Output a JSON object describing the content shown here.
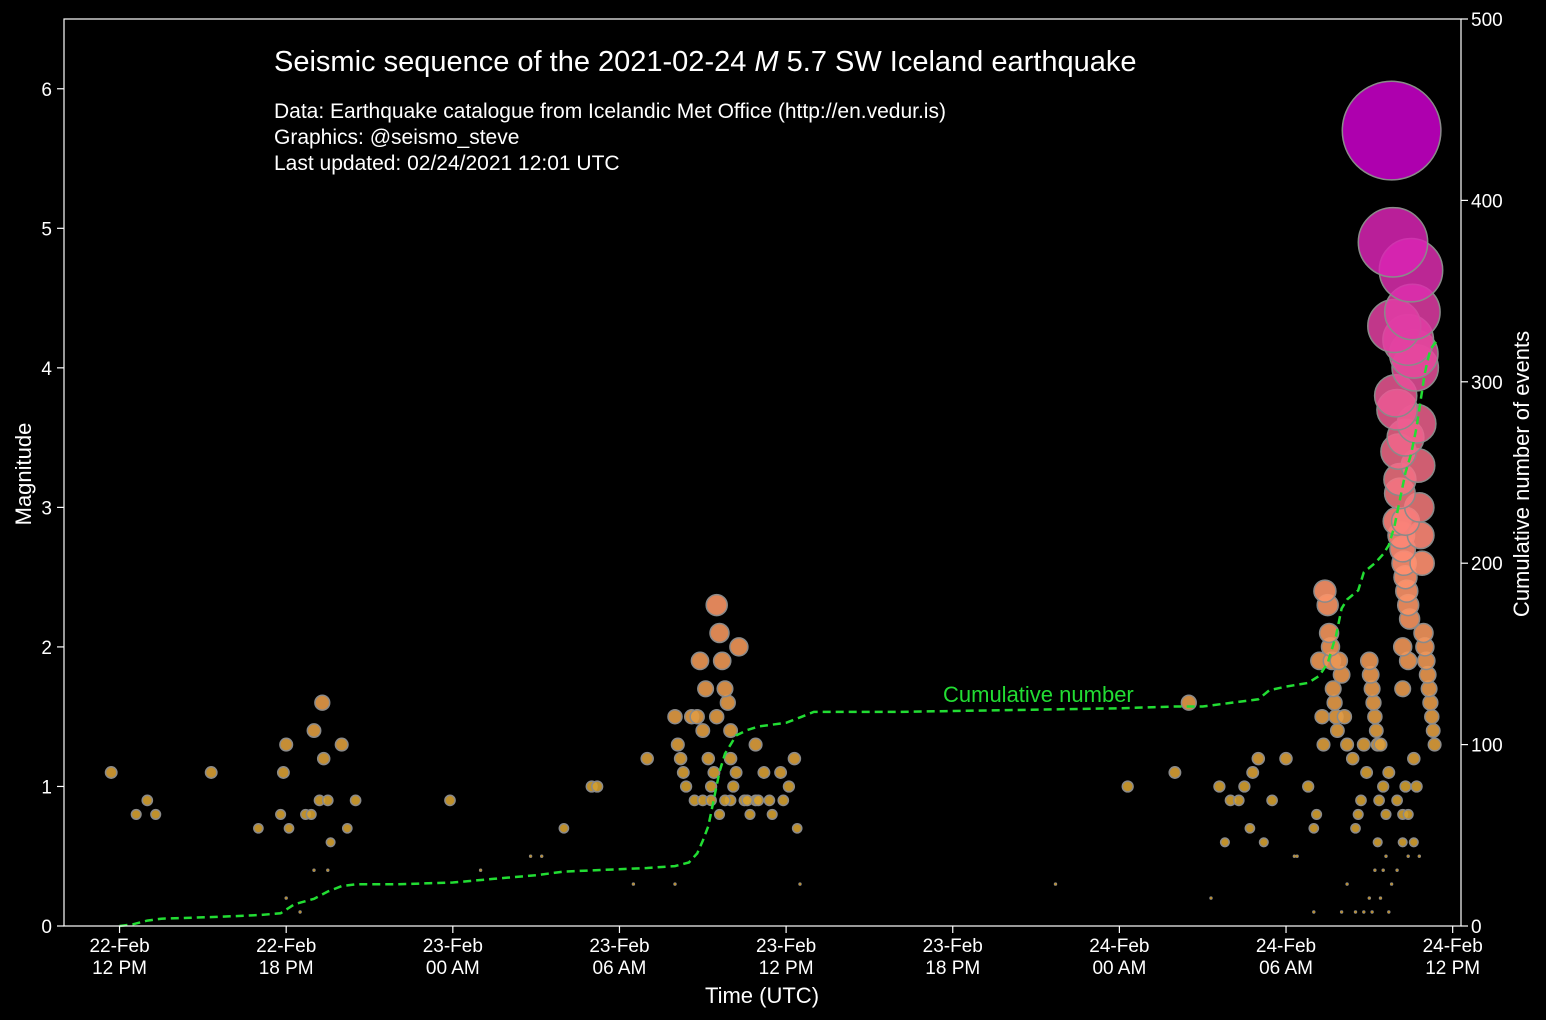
{
  "chart_data": {
    "type": "scatter",
    "title_prefix": "Seismic sequence of the 2021-02-24 ",
    "title_italic": "M",
    "title_suffix": " 5.7 SW Iceland earthquake",
    "info_lines": [
      "Data: Earthquake catalogue from Icelandic Met Office (http://en.vedur.is)",
      "Graphics: @seismo_steve",
      "Last updated:  02/24/2021 12:01 UTC"
    ],
    "xlabel": "Time (UTC)",
    "ylabel": "Magnitude",
    "y2label": "Cumulative number of events",
    "xlim_hours": [
      -2.0,
      48.3
    ],
    "ylim": [
      0,
      6.5
    ],
    "y2lim": [
      0,
      500
    ],
    "y_ticks": [
      0,
      1,
      2,
      3,
      4,
      5,
      6
    ],
    "y2_ticks": [
      0,
      100,
      200,
      300,
      400,
      500
    ],
    "x_ticks": [
      {
        "hours": 0,
        "line1": "22-Feb",
        "line2": "12 PM"
      },
      {
        "hours": 6,
        "line1": "22-Feb",
        "line2": "18 PM"
      },
      {
        "hours": 12,
        "line1": "23-Feb",
        "line2": "00 AM"
      },
      {
        "hours": 18,
        "line1": "23-Feb",
        "line2": "06 AM"
      },
      {
        "hours": 24,
        "line1": "23-Feb",
        "line2": "12 PM"
      },
      {
        "hours": 30,
        "line1": "23-Feb",
        "line2": "18 PM"
      },
      {
        "hours": 36,
        "line1": "24-Feb",
        "line2": "00 AM"
      },
      {
        "hours": 42,
        "line1": "24-Feb",
        "line2": "06 AM"
      },
      {
        "hours": 48,
        "line1": "24-Feb",
        "line2": "12 PM"
      }
    ],
    "cumulative_label": "Cumulative number",
    "colors": {
      "background": "#000000",
      "axes": "#ffffff",
      "cumulative": "#22dd33",
      "marker_edge": "#8a8a8a",
      "low_mag": "#d4a030",
      "mid_mag": "#ff9070",
      "high_mag": "#cc00cc"
    },
    "events": [
      [
        -0.3,
        1.1
      ],
      [
        0.6,
        0.8
      ],
      [
        1.0,
        0.9
      ],
      [
        1.3,
        0.8
      ],
      [
        3.3,
        1.1
      ],
      [
        5.0,
        0.7
      ],
      [
        5.8,
        0.8
      ],
      [
        5.9,
        1.1
      ],
      [
        6.0,
        1.3
      ],
      [
        6.1,
        0.7
      ],
      [
        6.7,
        0.8
      ],
      [
        6.9,
        0.8
      ],
      [
        7.0,
        1.4
      ],
      [
        7.2,
        0.9
      ],
      [
        7.3,
        1.6
      ],
      [
        7.35,
        1.2
      ],
      [
        7.5,
        0.9
      ],
      [
        7.6,
        0.6
      ],
      [
        8.0,
        1.3
      ],
      [
        8.2,
        0.7
      ],
      [
        8.5,
        0.9
      ],
      [
        6.0,
        0.2
      ],
      [
        6.5,
        0.1
      ],
      [
        7.0,
        0.4
      ],
      [
        7.5,
        0.4
      ],
      [
        11.9,
        0.9
      ],
      [
        13.0,
        0.4
      ],
      [
        14.8,
        0.5
      ],
      [
        15.2,
        0.5
      ],
      [
        16.0,
        0.7
      ],
      [
        17.0,
        1.0
      ],
      [
        17.2,
        1.0
      ],
      [
        18.5,
        0.3
      ],
      [
        19.0,
        1.2
      ],
      [
        20.0,
        1.5
      ],
      [
        20.1,
        1.3
      ],
      [
        20.2,
        1.2
      ],
      [
        20.3,
        1.1
      ],
      [
        20.4,
        1.0
      ],
      [
        20.6,
        1.5
      ],
      [
        20.7,
        0.9
      ],
      [
        20.8,
        1.5
      ],
      [
        20.9,
        1.9
      ],
      [
        21.0,
        1.4
      ],
      [
        21.1,
        1.7
      ],
      [
        21.2,
        1.2
      ],
      [
        21.3,
        1.0
      ],
      [
        21.4,
        1.1
      ],
      [
        21.5,
        2.3
      ],
      [
        21.6,
        2.1
      ],
      [
        21.7,
        1.9
      ],
      [
        21.8,
        1.7
      ],
      [
        21.9,
        1.6
      ],
      [
        22.0,
        1.4
      ],
      [
        22.1,
        1.0
      ],
      [
        22.2,
        1.1
      ],
      [
        22.3,
        2.0
      ],
      [
        22.5,
        0.9
      ],
      [
        22.7,
        0.8
      ],
      [
        22.9,
        1.3
      ],
      [
        23.2,
        1.1
      ],
      [
        23.5,
        0.8
      ],
      [
        23.8,
        1.1
      ],
      [
        23.9,
        0.9
      ],
      [
        24.1,
        1.0
      ],
      [
        24.3,
        1.2
      ],
      [
        24.4,
        0.7
      ],
      [
        20.0,
        0.3
      ],
      [
        22.0,
        0.9
      ],
      [
        21.0,
        0.9
      ],
      [
        21.6,
        0.8
      ],
      [
        22.9,
        0.9
      ],
      [
        23.4,
        0.9
      ],
      [
        24.5,
        0.3
      ],
      [
        22.6,
        0.9
      ],
      [
        21.3,
        0.9
      ],
      [
        23.0,
        0.9
      ],
      [
        21.8,
        0.9
      ],
      [
        22.0,
        1.2
      ],
      [
        21.5,
        1.5
      ],
      [
        36.3,
        1.0
      ],
      [
        38.0,
        1.1
      ],
      [
        38.5,
        1.6
      ],
      [
        39.6,
        1.0
      ],
      [
        39.8,
        0.6
      ],
      [
        40.0,
        0.9
      ],
      [
        40.3,
        0.9
      ],
      [
        40.5,
        1.0
      ],
      [
        40.7,
        0.7
      ],
      [
        40.8,
        1.1
      ],
      [
        41.0,
        1.2
      ],
      [
        41.2,
        0.6
      ],
      [
        41.5,
        0.9
      ],
      [
        42.0,
        1.2
      ],
      [
        42.3,
        0.5
      ],
      [
        42.8,
        1.0
      ],
      [
        43.0,
        0.7
      ],
      [
        43.1,
        0.8
      ],
      [
        43.2,
        1.9
      ],
      [
        43.3,
        1.5
      ],
      [
        43.35,
        1.3
      ],
      [
        43.4,
        2.4
      ],
      [
        43.5,
        2.3
      ],
      [
        43.55,
        2.1
      ],
      [
        43.6,
        2.0
      ],
      [
        43.65,
        1.9
      ],
      [
        43.7,
        1.7
      ],
      [
        43.75,
        1.6
      ],
      [
        43.8,
        1.5
      ],
      [
        43.85,
        1.4
      ],
      [
        43.9,
        1.9
      ],
      [
        44.0,
        1.8
      ],
      [
        44.1,
        1.5
      ],
      [
        44.2,
        1.3
      ],
      [
        44.4,
        1.2
      ],
      [
        44.5,
        0.7
      ],
      [
        44.6,
        0.8
      ],
      [
        44.7,
        0.9
      ],
      [
        44.8,
        1.3
      ],
      [
        44.9,
        1.1
      ],
      [
        45.0,
        1.9
      ],
      [
        45.05,
        1.8
      ],
      [
        45.1,
        1.7
      ],
      [
        45.15,
        1.6
      ],
      [
        45.2,
        1.5
      ],
      [
        45.25,
        1.4
      ],
      [
        45.3,
        1.3
      ],
      [
        45.35,
        0.9
      ],
      [
        45.4,
        1.3
      ],
      [
        45.5,
        1.0
      ],
      [
        45.6,
        0.8
      ],
      [
        45.7,
        1.1
      ],
      [
        45.8,
        5.7
      ],
      [
        45.85,
        4.9
      ],
      [
        45.9,
        4.3
      ],
      [
        45.95,
        3.8
      ],
      [
        46.0,
        3.7
      ],
      [
        46.05,
        3.4
      ],
      [
        46.1,
        3.1
      ],
      [
        46.15,
        2.8
      ],
      [
        46.2,
        2.7
      ],
      [
        46.25,
        2.6
      ],
      [
        46.3,
        2.5
      ],
      [
        46.35,
        2.4
      ],
      [
        46.4,
        2.3
      ],
      [
        46.45,
        2.2
      ],
      [
        46.5,
        4.7
      ],
      [
        46.55,
        4.4
      ],
      [
        46.6,
        4.1
      ],
      [
        46.65,
        4.0
      ],
      [
        46.7,
        3.6
      ],
      [
        46.75,
        3.3
      ],
      [
        46.8,
        3.0
      ],
      [
        46.85,
        2.8
      ],
      [
        46.9,
        2.6
      ],
      [
        46.95,
        2.1
      ],
      [
        47.0,
        2.0
      ],
      [
        47.05,
        1.9
      ],
      [
        47.1,
        1.8
      ],
      [
        47.15,
        1.7
      ],
      [
        47.2,
        1.6
      ],
      [
        47.25,
        1.5
      ],
      [
        47.3,
        1.4
      ],
      [
        47.35,
        1.3
      ],
      [
        46.0,
        2.9
      ],
      [
        46.3,
        3.5
      ],
      [
        46.4,
        4.2
      ],
      [
        46.1,
        3.2
      ],
      [
        46.3,
        2.9
      ],
      [
        46.2,
        2.0
      ],
      [
        46.2,
        1.7
      ],
      [
        46.4,
        1.9
      ],
      [
        46.6,
        1.2
      ],
      [
        46.3,
        1.0
      ],
      [
        46.7,
        1.0
      ],
      [
        46.0,
        0.9
      ],
      [
        46.2,
        0.8
      ],
      [
        46.4,
        0.8
      ],
      [
        46.8,
        0.5
      ],
      [
        45.6,
        0.5
      ],
      [
        45.5,
        0.4
      ],
      [
        45.8,
        0.3
      ],
      [
        46.0,
        0.4
      ],
      [
        46.2,
        0.6
      ],
      [
        46.4,
        0.5
      ],
      [
        46.6,
        0.6
      ],
      [
        45.3,
        0.6
      ],
      [
        45.2,
        0.4
      ],
      [
        45.0,
        0.2
      ],
      [
        45.4,
        0.2
      ],
      [
        45.7,
        0.1
      ],
      [
        44.8,
        0.1
      ],
      [
        44.2,
        0.3
      ],
      [
        42.4,
        0.5
      ],
      [
        33.7,
        0.3
      ],
      [
        39.3,
        0.2
      ],
      [
        43.0,
        0.1
      ],
      [
        44.0,
        0.1
      ],
      [
        44.5,
        0.1
      ],
      [
        45.1,
        0.1
      ]
    ],
    "cumulative": [
      [
        0.0,
        0
      ],
      [
        0.5,
        1
      ],
      [
        1.0,
        3
      ],
      [
        1.5,
        4
      ],
      [
        3.5,
        5
      ],
      [
        5.0,
        6
      ],
      [
        5.8,
        7
      ],
      [
        6.3,
        12
      ],
      [
        7.0,
        15
      ],
      [
        7.5,
        19
      ],
      [
        8.0,
        22
      ],
      [
        8.5,
        23
      ],
      [
        10.0,
        23
      ],
      [
        12.0,
        24
      ],
      [
        13.5,
        26
      ],
      [
        15.0,
        28
      ],
      [
        16.0,
        30
      ],
      [
        17.5,
        31
      ],
      [
        19.0,
        32
      ],
      [
        20.0,
        33
      ],
      [
        20.5,
        35
      ],
      [
        20.8,
        40
      ],
      [
        21.0,
        47
      ],
      [
        21.2,
        55
      ],
      [
        21.4,
        70
      ],
      [
        21.6,
        85
      ],
      [
        21.8,
        95
      ],
      [
        22.0,
        100
      ],
      [
        22.2,
        105
      ],
      [
        22.6,
        108
      ],
      [
        23.0,
        110
      ],
      [
        24.0,
        112
      ],
      [
        24.5,
        115
      ],
      [
        25.0,
        118
      ],
      [
        28.0,
        118
      ],
      [
        32.0,
        119
      ],
      [
        36.0,
        120
      ],
      [
        38.0,
        121
      ],
      [
        39.0,
        121
      ],
      [
        40.0,
        123
      ],
      [
        41.0,
        125
      ],
      [
        41.4,
        130
      ],
      [
        42.0,
        132
      ],
      [
        42.8,
        134
      ],
      [
        43.2,
        138
      ],
      [
        43.5,
        145
      ],
      [
        43.7,
        155
      ],
      [
        43.8,
        160
      ],
      [
        44.0,
        175
      ],
      [
        44.2,
        180
      ],
      [
        44.6,
        185
      ],
      [
        44.8,
        195
      ],
      [
        45.2,
        200
      ],
      [
        45.5,
        205
      ],
      [
        45.7,
        210
      ],
      [
        45.9,
        220
      ],
      [
        46.1,
        235
      ],
      [
        46.3,
        250
      ],
      [
        46.5,
        260
      ],
      [
        46.7,
        275
      ],
      [
        46.85,
        290
      ],
      [
        47.0,
        305
      ],
      [
        47.2,
        318
      ],
      [
        47.4,
        322
      ]
    ]
  }
}
